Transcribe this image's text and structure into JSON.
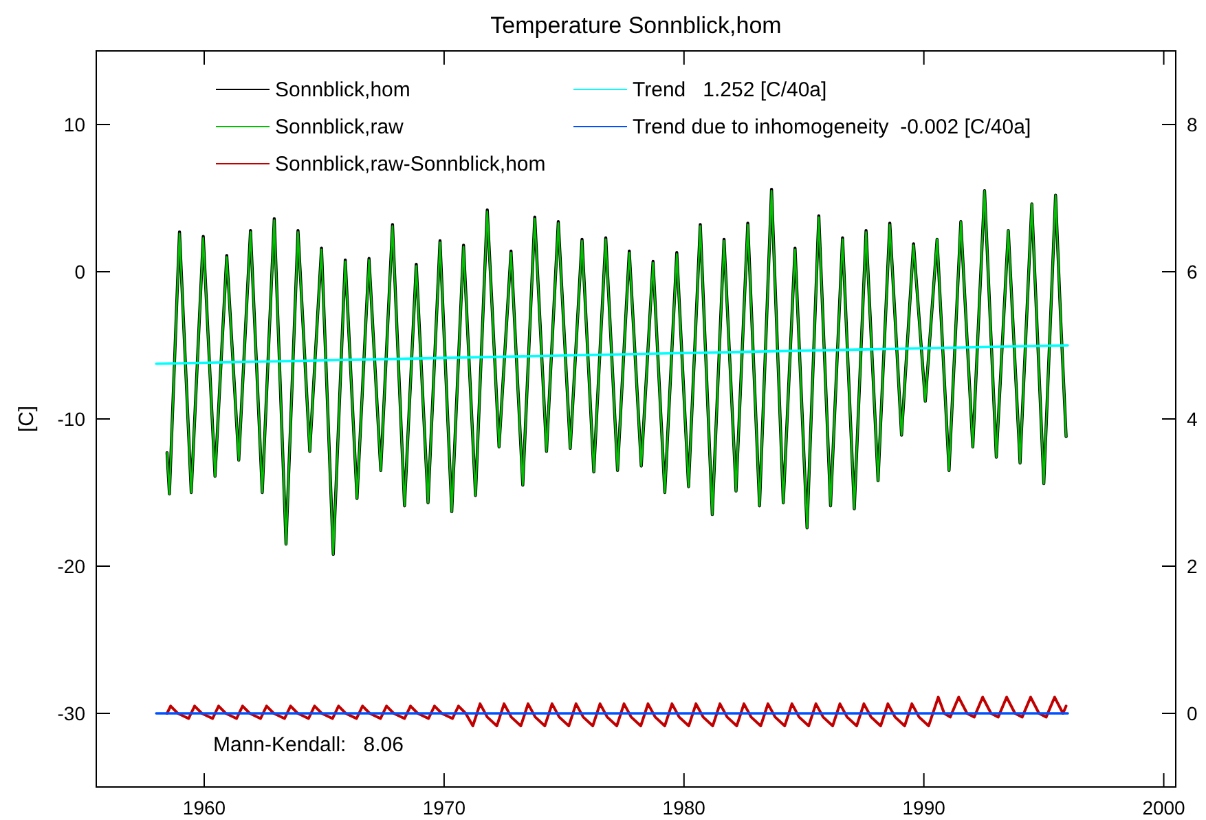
{
  "chart_data": {
    "type": "line",
    "title": "Temperature Sonnblick,hom",
    "ylabel": "[C]",
    "xlim": [
      1955.5,
      2000.5
    ],
    "xticks": [
      1960,
      1970,
      1980,
      1990,
      2000
    ],
    "ylim": [
      -35,
      15
    ],
    "yticks": [
      -30,
      -20,
      -10,
      0,
      10
    ],
    "y2lim": [
      -1,
      9
    ],
    "y2ticks": [
      0,
      2,
      4,
      6,
      8
    ],
    "legend": "top",
    "annotations": [
      "Mann-Kendall:   8.06"
    ],
    "series": [
      {
        "name": "Sonnblick,hom",
        "color": "#000000",
        "x": [
          1958.45,
          1958.55,
          1958.97,
          1959.46,
          1959.96,
          1960.45,
          1960.94,
          1961.44,
          1961.93,
          1962.42,
          1962.92,
          1963.41,
          1963.91,
          1964.4,
          1964.89,
          1965.38,
          1965.88,
          1966.37,
          1966.87,
          1967.36,
          1967.85,
          1968.35,
          1968.84,
          1969.33,
          1969.83,
          1970.32,
          1970.81,
          1971.31,
          1971.8,
          1972.29,
          1972.79,
          1973.28,
          1973.78,
          1974.27,
          1974.76,
          1975.26,
          1975.75,
          1976.24,
          1976.74,
          1977.23,
          1977.72,
          1978.22,
          1978.71,
          1979.2,
          1979.7,
          1980.19,
          1980.68,
          1981.18,
          1981.67,
          1982.17,
          1982.66,
          1983.15,
          1983.65,
          1984.14,
          1984.63,
          1985.13,
          1985.62,
          1986.11,
          1986.61,
          1987.1,
          1987.59,
          1988.09,
          1988.58,
          1989.07,
          1989.57,
          1990.06,
          1990.55,
          1991.05,
          1991.54,
          1992.04,
          1992.53,
          1993.02,
          1993.52,
          1994.01,
          1994.5,
          1995.0,
          1995.49,
          1995.7,
          1995.93
        ],
        "values": [
          -12.3,
          -15.1,
          2.7,
          -15.0,
          2.4,
          -13.9,
          1.1,
          -12.8,
          2.8,
          -15.0,
          3.6,
          -18.5,
          2.8,
          -12.2,
          1.6,
          -19.2,
          0.8,
          -15.4,
          0.9,
          -13.5,
          3.2,
          -15.9,
          0.5,
          -15.7,
          2.1,
          -16.3,
          1.8,
          -15.2,
          4.2,
          -11.9,
          1.4,
          -14.5,
          3.7,
          -12.2,
          3.4,
          -12.0,
          2.2,
          -13.6,
          2.3,
          -13.5,
          1.4,
          -13.2,
          0.7,
          -15.0,
          1.3,
          -14.6,
          3.2,
          -16.5,
          2.2,
          -14.9,
          3.3,
          -15.9,
          5.6,
          -15.7,
          1.6,
          -17.4,
          3.8,
          -15.9,
          2.3,
          -16.1,
          2.8,
          -14.2,
          3.3,
          -11.1,
          1.9,
          -8.8,
          2.2,
          -13.5,
          3.4,
          -11.9,
          5.5,
          -12.6,
          2.8,
          -13.0,
          4.6,
          -14.4,
          5.2,
          -3.1,
          -11.2
        ]
      },
      {
        "name": "Sonnblick,raw",
        "color": "#00c000",
        "x": [
          1958.45,
          1958.55,
          1958.97,
          1959.46,
          1959.96,
          1960.45,
          1960.94,
          1961.44,
          1961.93,
          1962.42,
          1962.92,
          1963.41,
          1963.91,
          1964.4,
          1964.89,
          1965.38,
          1965.88,
          1966.37,
          1966.87,
          1967.36,
          1967.85,
          1968.35,
          1968.84,
          1969.33,
          1969.83,
          1970.32,
          1970.81,
          1971.31,
          1971.8,
          1972.29,
          1972.79,
          1973.28,
          1973.78,
          1974.27,
          1974.76,
          1975.26,
          1975.75,
          1976.24,
          1976.74,
          1977.23,
          1977.72,
          1978.22,
          1978.71,
          1979.2,
          1979.7,
          1980.19,
          1980.68,
          1981.18,
          1981.67,
          1982.17,
          1982.66,
          1983.15,
          1983.65,
          1984.14,
          1984.63,
          1985.13,
          1985.62,
          1986.11,
          1986.61,
          1987.1,
          1987.59,
          1988.09,
          1988.58,
          1989.07,
          1989.57,
          1990.06,
          1990.55,
          1991.05,
          1991.54,
          1992.04,
          1992.53,
          1993.02,
          1993.52,
          1994.01,
          1994.5,
          1995.0,
          1995.49,
          1995.7,
          1995.93
        ],
        "values": [
          -12.3,
          -15.1,
          2.6,
          -15.0,
          2.3,
          -13.9,
          1.0,
          -12.8,
          2.7,
          -15.0,
          3.5,
          -18.5,
          2.7,
          -12.2,
          1.5,
          -19.2,
          0.7,
          -15.4,
          0.8,
          -13.5,
          3.1,
          -15.9,
          0.4,
          -15.7,
          2.0,
          -16.3,
          1.7,
          -15.2,
          4.1,
          -11.9,
          1.3,
          -14.5,
          3.6,
          -12.2,
          3.3,
          -12.0,
          2.1,
          -13.6,
          2.2,
          -13.5,
          1.3,
          -13.2,
          0.6,
          -15.0,
          1.2,
          -14.6,
          3.1,
          -16.5,
          2.1,
          -14.9,
          3.2,
          -15.9,
          5.5,
          -15.7,
          1.5,
          -17.4,
          3.7,
          -15.9,
          2.2,
          -16.1,
          2.7,
          -14.2,
          3.2,
          -11.1,
          1.8,
          -8.8,
          2.2,
          -13.5,
          3.4,
          -11.9,
          5.5,
          -12.6,
          2.8,
          -13.0,
          4.6,
          -14.4,
          5.2,
          -3.1,
          -11.2
        ]
      },
      {
        "name": "Sonnblick,raw-Sonnblick,hom",
        "color": "#c00000",
        "axis": "y2",
        "x": [
          1958.45,
          1958.6,
          1958.9,
          1959.35,
          1959.6,
          1959.9,
          1960.35,
          1960.6,
          1960.9,
          1961.35,
          1961.6,
          1961.9,
          1962.35,
          1962.6,
          1962.9,
          1963.35,
          1963.6,
          1963.9,
          1964.35,
          1964.6,
          1964.9,
          1965.35,
          1965.6,
          1965.9,
          1966.35,
          1966.6,
          1966.9,
          1967.35,
          1967.6,
          1967.9,
          1968.35,
          1968.6,
          1968.9,
          1969.35,
          1969.6,
          1969.9,
          1970.35,
          1970.6,
          1970.9,
          1971.2,
          1971.5,
          1971.8,
          1972.2,
          1972.5,
          1972.8,
          1973.2,
          1973.5,
          1973.8,
          1974.2,
          1974.5,
          1974.8,
          1975.2,
          1975.5,
          1975.8,
          1976.2,
          1976.5,
          1976.8,
          1977.2,
          1977.5,
          1977.8,
          1978.2,
          1978.5,
          1978.8,
          1979.2,
          1979.5,
          1979.8,
          1980.2,
          1980.5,
          1980.8,
          1981.2,
          1981.5,
          1981.8,
          1982.2,
          1982.5,
          1982.8,
          1983.2,
          1983.5,
          1983.8,
          1984.2,
          1984.5,
          1984.8,
          1985.2,
          1985.5,
          1985.8,
          1986.2,
          1986.5,
          1986.8,
          1987.2,
          1987.5,
          1987.8,
          1988.2,
          1988.5,
          1988.8,
          1989.2,
          1989.5,
          1989.8,
          1990.2,
          1990.6,
          1990.85,
          1991.1,
          1991.45,
          1991.8,
          1992.1,
          1992.45,
          1992.8,
          1993.1,
          1993.45,
          1993.8,
          1994.1,
          1994.45,
          1994.8,
          1995.1,
          1995.45,
          1995.8,
          1995.93
        ],
        "values": [
          0.0,
          0.1,
          0.0,
          -0.07,
          0.1,
          0.0,
          -0.07,
          0.1,
          0.0,
          -0.07,
          0.1,
          0.0,
          -0.07,
          0.1,
          0.0,
          -0.07,
          0.1,
          0.0,
          -0.07,
          0.1,
          0.0,
          -0.07,
          0.1,
          0.0,
          -0.07,
          0.1,
          0.0,
          -0.07,
          0.1,
          0.0,
          -0.07,
          0.1,
          0.0,
          -0.07,
          0.1,
          0.0,
          -0.07,
          0.1,
          0.0,
          -0.17,
          0.13,
          -0.05,
          -0.17,
          0.13,
          -0.05,
          -0.17,
          0.13,
          -0.05,
          -0.17,
          0.13,
          -0.05,
          -0.17,
          0.13,
          -0.05,
          -0.17,
          0.13,
          -0.05,
          -0.17,
          0.13,
          -0.05,
          -0.17,
          0.13,
          -0.05,
          -0.17,
          0.13,
          -0.05,
          -0.17,
          0.13,
          -0.05,
          -0.17,
          0.13,
          -0.05,
          -0.17,
          0.13,
          -0.05,
          -0.17,
          0.13,
          -0.05,
          -0.17,
          0.13,
          -0.05,
          -0.17,
          0.13,
          -0.05,
          -0.17,
          0.13,
          -0.05,
          -0.17,
          0.13,
          -0.05,
          -0.17,
          0.13,
          -0.05,
          -0.17,
          0.13,
          -0.05,
          -0.17,
          0.22,
          0.0,
          -0.05,
          0.22,
          0.0,
          -0.05,
          0.22,
          0.0,
          -0.05,
          0.22,
          0.0,
          -0.05,
          0.22,
          0.0,
          -0.05,
          0.22,
          0.0,
          0.1
        ]
      },
      {
        "name": "Trend   1.252 [C/40a]",
        "color": "#00ffff",
        "x": [
          1958.0,
          1996.0
        ],
        "values": [
          -6.25,
          -5.0
        ]
      },
      {
        "name": "Trend due to inhomogeneity  -0.002 [C/40a]",
        "color": "#0050ff",
        "axis": "y2",
        "x": [
          1958.0,
          1996.0
        ],
        "values": [
          0.0,
          0.0
        ]
      }
    ]
  }
}
